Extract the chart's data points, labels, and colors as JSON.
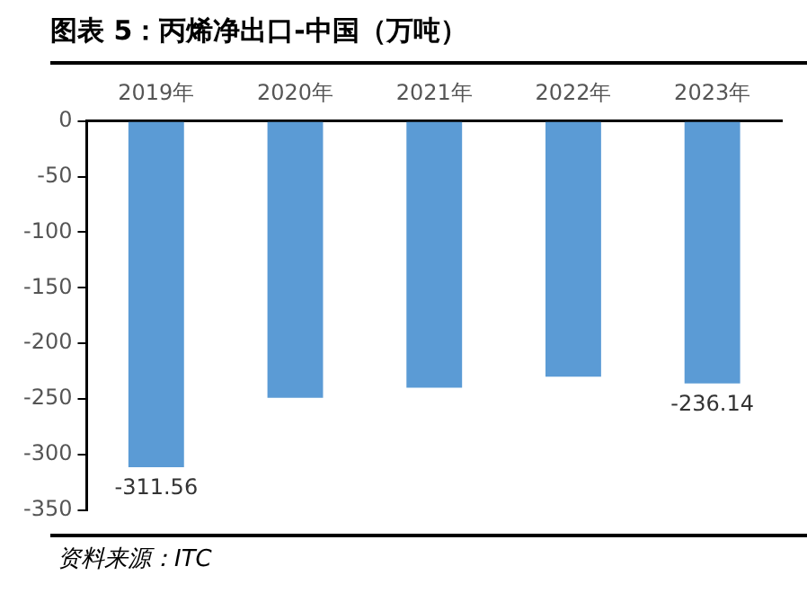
{
  "chart_data": {
    "type": "bar",
    "title": "图表 5：丙烯净出口-中国（万吨）",
    "categories": [
      "2019年",
      "2020年",
      "2021年",
      "2022年",
      "2023年"
    ],
    "values": [
      -311.56,
      -249,
      -240,
      -230,
      -236.14
    ],
    "value_labels": [
      "-311.56",
      null,
      null,
      null,
      "-236.14"
    ],
    "color": "#5b9bd5",
    "ylim": [
      -350,
      0
    ],
    "yticks": [
      0,
      -50,
      -100,
      -150,
      -200,
      -250,
      -300,
      -350
    ],
    "grid": false,
    "legend": false,
    "annotations": [
      "资料来源：ITC"
    ]
  }
}
